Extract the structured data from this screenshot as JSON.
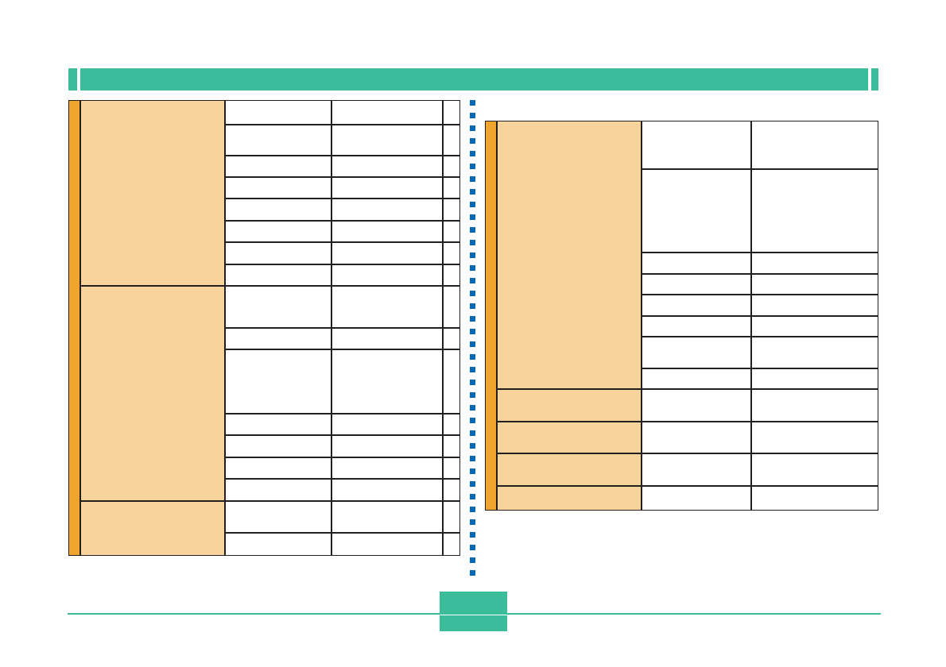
{
  "colors": {
    "header_green": "#3bbd9c",
    "group_orange": "#f0a52c",
    "group_fill": "#f8d39b",
    "dot_blue": "#0068b7",
    "border": "#231f20"
  },
  "left_table": {
    "cells": []
  },
  "right_table": {
    "cells": []
  }
}
